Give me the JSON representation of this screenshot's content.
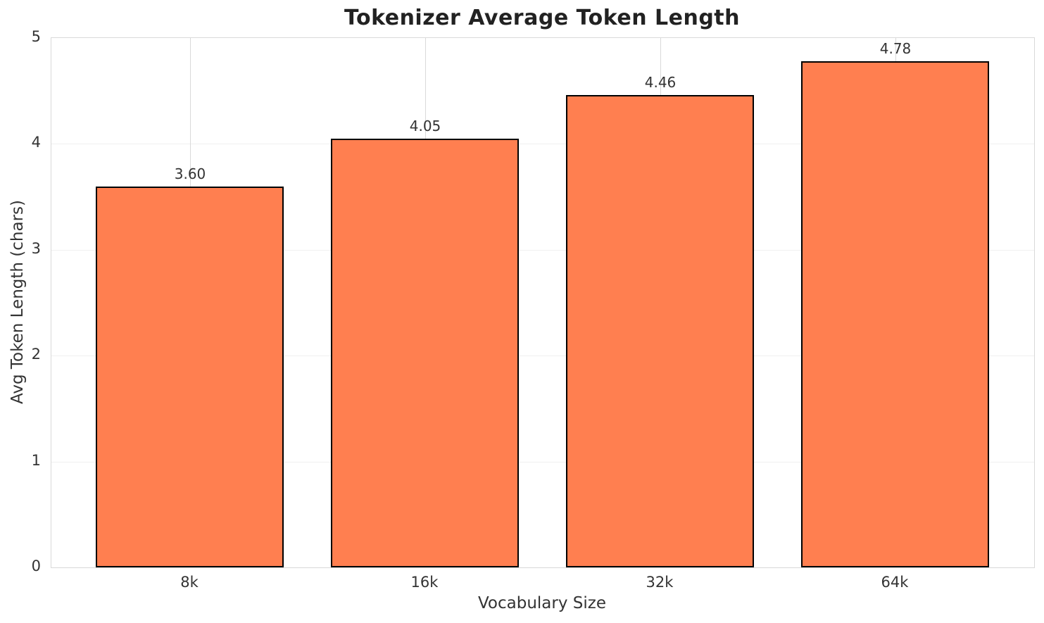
{
  "chart_data": {
    "type": "bar",
    "title": "Tokenizer Average Token Length",
    "xlabel": "Vocabulary Size",
    "ylabel": "Avg Token Length (chars)",
    "categories": [
      "8k",
      "16k",
      "32k",
      "64k"
    ],
    "values": [
      3.6,
      4.05,
      4.46,
      4.78
    ],
    "value_labels": [
      "3.60",
      "4.05",
      "4.46",
      "4.78"
    ],
    "yticks": [
      0,
      1,
      2,
      3,
      4,
      5
    ],
    "ylim": [
      0,
      5
    ],
    "xlim": [
      -0.59,
      3.59
    ],
    "bar_width": 0.8,
    "bar_color": "#FF7F50",
    "bar_edge_color": "#000000",
    "grid": true,
    "legend_position": "none"
  }
}
